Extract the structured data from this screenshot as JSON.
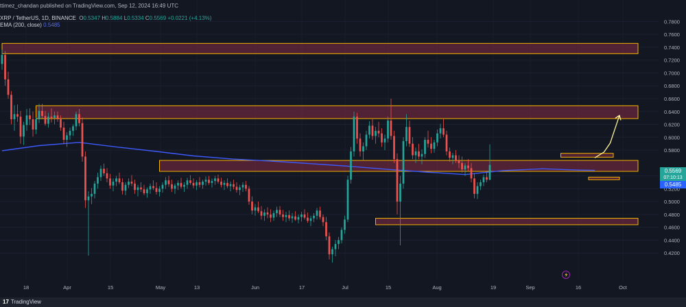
{
  "header": {
    "published": "ttimez_chandan published on TradingView.com, Sep 12, 2024 16:49 UTC",
    "symbol": "XRP / TetherUS, 1D, BINANCE",
    "o_label": "O",
    "o": "0.5347",
    "h_label": "H",
    "h": "0.5884",
    "l_label": "L",
    "l": "0.5334",
    "c_label": "C",
    "c": "0.5569",
    "change": "+0.0221 (+4.13%)",
    "ema_label": "EMA (200, close)",
    "ema_value": "0.5485"
  },
  "footer": {
    "brand": "TradingView",
    "logo": "17"
  },
  "colors": {
    "background": "#131722",
    "up": "#26a69a",
    "down": "#ef5350",
    "ema": "#3d5afe",
    "zone_border": "#f7b500",
    "zone_fill": "#7a2a40",
    "projection_arrow": "#fff59d",
    "price_tag": "#26a69a",
    "ema_tag": "#2962ff"
  },
  "icons": {
    "lightning": "lightning-icon"
  },
  "chart_data": {
    "type": "candlestick",
    "symbol": "XRP / TetherUS",
    "interval": "1D",
    "exchange": "BINANCE",
    "ylim": [
      0.4,
      0.79
    ],
    "y_ticks": [
      "0.7800",
      "0.7600",
      "0.7400",
      "0.7200",
      "0.7000",
      "0.6800",
      "0.6600",
      "0.6400",
      "0.6200",
      "0.6000",
      "0.5800",
      "0.5400",
      "0.5200",
      "0.5000",
      "0.4800",
      "0.4600",
      "0.4400",
      "0.4200"
    ],
    "x_labels": [
      "18",
      "Apr",
      "15",
      "May",
      "13",
      "Jun",
      "17",
      "Jul",
      "15",
      "Aug",
      "19",
      "Sep",
      "16",
      "Oct"
    ],
    "last_price": "0.5569",
    "countdown": "07:10:13",
    "ema_last": "0.5485",
    "zones": [
      {
        "low": 0.73,
        "high": 0.746,
        "x_start": 0,
        "x_end": 206
      },
      {
        "low": 0.629,
        "high": 0.649,
        "x_start": 11,
        "x_end": 206
      },
      {
        "low": 0.547,
        "high": 0.564,
        "x_start": 51,
        "x_end": 206
      },
      {
        "low": 0.464,
        "high": 0.474,
        "x_start": 121,
        "x_end": 206
      },
      {
        "low": 0.569,
        "high": 0.575,
        "x_start": 181,
        "x_end": 198
      },
      {
        "low": 0.534,
        "high": 0.538,
        "x_start": 190,
        "x_end": 200
      }
    ],
    "projection": [
      [
        192,
        0.568
      ],
      [
        195,
        0.577
      ],
      [
        197,
        0.591
      ],
      [
        200,
        0.634
      ]
    ],
    "ema_200": [
      [
        0,
        0.579
      ],
      [
        12,
        0.587
      ],
      [
        25,
        0.592
      ],
      [
        37,
        0.585
      ],
      [
        50,
        0.578
      ],
      [
        62,
        0.571
      ],
      [
        75,
        0.566
      ],
      [
        87,
        0.563
      ],
      [
        100,
        0.559
      ],
      [
        112,
        0.555
      ],
      [
        125,
        0.55
      ],
      [
        137,
        0.546
      ],
      [
        150,
        0.542
      ],
      [
        162,
        0.548
      ],
      [
        175,
        0.551
      ],
      [
        187,
        0.549
      ],
      [
        192,
        0.5485
      ]
    ],
    "candles": [
      [
        0.714,
        0.736,
        0.705,
        0.728
      ],
      [
        0.728,
        0.734,
        0.68,
        0.69
      ],
      [
        0.69,
        0.702,
        0.66,
        0.666
      ],
      [
        0.666,
        0.672,
        0.62,
        0.628
      ],
      [
        0.628,
        0.65,
        0.61,
        0.636
      ],
      [
        0.636,
        0.651,
        0.624,
        0.632
      ],
      [
        0.632,
        0.641,
        0.59,
        0.601
      ],
      [
        0.601,
        0.624,
        0.588,
        0.619
      ],
      [
        0.619,
        0.644,
        0.61,
        0.634
      ],
      [
        0.634,
        0.645,
        0.619,
        0.628
      ],
      [
        0.628,
        0.64,
        0.601,
        0.612
      ],
      [
        0.612,
        0.631,
        0.605,
        0.628
      ],
      [
        0.628,
        0.652,
        0.622,
        0.641
      ],
      [
        0.641,
        0.652,
        0.628,
        0.633
      ],
      [
        0.633,
        0.641,
        0.618,
        0.621
      ],
      [
        0.621,
        0.638,
        0.615,
        0.632
      ],
      [
        0.632,
        0.645,
        0.623,
        0.63
      ],
      [
        0.63,
        0.64,
        0.62,
        0.634
      ],
      [
        0.634,
        0.64,
        0.624,
        0.628
      ],
      [
        0.628,
        0.634,
        0.61,
        0.615
      ],
      [
        0.615,
        0.624,
        0.59,
        0.596
      ],
      [
        0.596,
        0.608,
        0.585,
        0.603
      ],
      [
        0.603,
        0.615,
        0.596,
        0.61
      ],
      [
        0.61,
        0.62,
        0.602,
        0.617
      ],
      [
        0.617,
        0.64,
        0.611,
        0.636
      ],
      [
        0.636,
        0.644,
        0.617,
        0.622
      ],
      [
        0.622,
        0.631,
        0.562,
        0.57
      ],
      [
        0.57,
        0.578,
        0.49,
        0.502
      ],
      [
        0.502,
        0.516,
        0.416,
        0.508
      ],
      [
        0.508,
        0.521,
        0.496,
        0.512
      ],
      [
        0.512,
        0.532,
        0.505,
        0.528
      ],
      [
        0.528,
        0.545,
        0.52,
        0.538
      ],
      [
        0.538,
        0.556,
        0.532,
        0.551
      ],
      [
        0.551,
        0.559,
        0.54,
        0.544
      ],
      [
        0.544,
        0.552,
        0.53,
        0.536
      ],
      [
        0.536,
        0.543,
        0.52,
        0.525
      ],
      [
        0.525,
        0.536,
        0.516,
        0.531
      ],
      [
        0.531,
        0.54,
        0.524,
        0.536
      ],
      [
        0.536,
        0.545,
        0.527,
        0.53
      ],
      [
        0.53,
        0.536,
        0.511,
        0.517
      ],
      [
        0.517,
        0.53,
        0.51,
        0.526
      ],
      [
        0.526,
        0.536,
        0.521,
        0.531
      ],
      [
        0.531,
        0.541,
        0.524,
        0.528
      ],
      [
        0.528,
        0.534,
        0.512,
        0.518
      ],
      [
        0.518,
        0.526,
        0.508,
        0.522
      ],
      [
        0.522,
        0.53,
        0.515,
        0.519
      ],
      [
        0.519,
        0.526,
        0.51,
        0.513
      ],
      [
        0.513,
        0.522,
        0.506,
        0.519
      ],
      [
        0.519,
        0.528,
        0.512,
        0.524
      ],
      [
        0.524,
        0.533,
        0.518,
        0.521
      ],
      [
        0.521,
        0.53,
        0.511,
        0.515
      ],
      [
        0.515,
        0.524,
        0.508,
        0.52
      ],
      [
        0.52,
        0.53,
        0.514,
        0.526
      ],
      [
        0.526,
        0.538,
        0.52,
        0.533
      ],
      [
        0.533,
        0.54,
        0.523,
        0.527
      ],
      [
        0.527,
        0.534,
        0.515,
        0.52
      ],
      [
        0.52,
        0.528,
        0.512,
        0.525
      ],
      [
        0.525,
        0.533,
        0.518,
        0.529
      ],
      [
        0.529,
        0.537,
        0.52,
        0.523
      ],
      [
        0.523,
        0.53,
        0.515,
        0.526
      ],
      [
        0.526,
        0.537,
        0.52,
        0.533
      ],
      [
        0.533,
        0.541,
        0.526,
        0.529
      ],
      [
        0.529,
        0.536,
        0.521,
        0.525
      ],
      [
        0.525,
        0.533,
        0.518,
        0.53
      ],
      [
        0.53,
        0.538,
        0.522,
        0.526
      ],
      [
        0.526,
        0.534,
        0.52,
        0.531
      ],
      [
        0.531,
        0.539,
        0.525,
        0.534
      ],
      [
        0.534,
        0.54,
        0.526,
        0.529
      ],
      [
        0.529,
        0.536,
        0.522,
        0.532
      ],
      [
        0.532,
        0.54,
        0.526,
        0.536
      ],
      [
        0.536,
        0.542,
        0.528,
        0.531
      ],
      [
        0.531,
        0.537,
        0.522,
        0.526
      ],
      [
        0.526,
        0.533,
        0.518,
        0.529
      ],
      [
        0.529,
        0.536,
        0.521,
        0.524
      ],
      [
        0.524,
        0.531,
        0.516,
        0.527
      ],
      [
        0.527,
        0.534,
        0.519,
        0.523
      ],
      [
        0.523,
        0.53,
        0.514,
        0.518
      ],
      [
        0.518,
        0.526,
        0.51,
        0.522
      ],
      [
        0.522,
        0.53,
        0.515,
        0.526
      ],
      [
        0.526,
        0.532,
        0.516,
        0.52
      ],
      [
        0.52,
        0.524,
        0.495,
        0.5
      ],
      [
        0.5,
        0.508,
        0.48,
        0.486
      ],
      [
        0.486,
        0.496,
        0.478,
        0.491
      ],
      [
        0.491,
        0.5,
        0.482,
        0.485
      ],
      [
        0.485,
        0.493,
        0.472,
        0.478
      ],
      [
        0.478,
        0.488,
        0.47,
        0.483
      ],
      [
        0.483,
        0.491,
        0.474,
        0.48
      ],
      [
        0.48,
        0.488,
        0.468,
        0.475
      ],
      [
        0.475,
        0.486,
        0.47,
        0.482
      ],
      [
        0.482,
        0.492,
        0.476,
        0.487
      ],
      [
        0.487,
        0.493,
        0.476,
        0.48
      ],
      [
        0.48,
        0.487,
        0.47,
        0.476
      ],
      [
        0.476,
        0.484,
        0.468,
        0.479
      ],
      [
        0.479,
        0.486,
        0.47,
        0.474
      ],
      [
        0.474,
        0.482,
        0.467,
        0.477
      ],
      [
        0.477,
        0.485,
        0.47,
        0.472
      ],
      [
        0.472,
        0.48,
        0.466,
        0.476
      ],
      [
        0.476,
        0.484,
        0.469,
        0.48
      ],
      [
        0.48,
        0.488,
        0.472,
        0.475
      ],
      [
        0.475,
        0.483,
        0.467,
        0.47
      ],
      [
        0.47,
        0.478,
        0.462,
        0.474
      ],
      [
        0.474,
        0.482,
        0.468,
        0.478
      ],
      [
        0.478,
        0.49,
        0.472,
        0.486
      ],
      [
        0.486,
        0.492,
        0.472,
        0.476
      ],
      [
        0.476,
        0.48,
        0.462,
        0.468
      ],
      [
        0.468,
        0.476,
        0.44,
        0.446
      ],
      [
        0.446,
        0.452,
        0.41,
        0.418
      ],
      [
        0.418,
        0.43,
        0.405,
        0.426
      ],
      [
        0.426,
        0.44,
        0.415,
        0.434
      ],
      [
        0.434,
        0.445,
        0.426,
        0.44
      ],
      [
        0.44,
        0.46,
        0.435,
        0.456
      ],
      [
        0.456,
        0.478,
        0.45,
        0.472
      ],
      [
        0.472,
        0.54,
        0.468,
        0.534
      ],
      [
        0.534,
        0.585,
        0.528,
        0.578
      ],
      [
        0.578,
        0.64,
        0.57,
        0.632
      ],
      [
        0.632,
        0.638,
        0.59,
        0.598
      ],
      [
        0.598,
        0.606,
        0.57,
        0.578
      ],
      [
        0.578,
        0.592,
        0.564,
        0.586
      ],
      [
        0.586,
        0.61,
        0.58,
        0.604
      ],
      [
        0.604,
        0.625,
        0.598,
        0.618
      ],
      [
        0.618,
        0.628,
        0.596,
        0.602
      ],
      [
        0.602,
        0.616,
        0.59,
        0.61
      ],
      [
        0.61,
        0.624,
        0.6,
        0.606
      ],
      [
        0.606,
        0.614,
        0.585,
        0.592
      ],
      [
        0.592,
        0.604,
        0.58,
        0.598
      ],
      [
        0.598,
        0.632,
        0.592,
        0.626
      ],
      [
        0.626,
        0.66,
        0.596,
        0.602
      ],
      [
        0.602,
        0.61,
        0.56,
        0.566
      ],
      [
        0.566,
        0.575,
        0.48,
        0.5
      ],
      [
        0.5,
        0.54,
        0.432,
        0.528
      ],
      [
        0.528,
        0.6,
        0.52,
        0.594
      ],
      [
        0.594,
        0.636,
        0.586,
        0.616
      ],
      [
        0.616,
        0.626,
        0.585,
        0.59
      ],
      [
        0.59,
        0.6,
        0.566,
        0.572
      ],
      [
        0.572,
        0.584,
        0.56,
        0.578
      ],
      [
        0.578,
        0.59,
        0.566,
        0.57
      ],
      [
        0.57,
        0.581,
        0.558,
        0.574
      ],
      [
        0.574,
        0.6,
        0.568,
        0.596
      ],
      [
        0.596,
        0.61,
        0.584,
        0.59
      ],
      [
        0.59,
        0.6,
        0.575,
        0.582
      ],
      [
        0.582,
        0.596,
        0.576,
        0.592
      ],
      [
        0.592,
        0.612,
        0.586,
        0.606
      ],
      [
        0.606,
        0.621,
        0.598,
        0.614
      ],
      [
        0.614,
        0.628,
        0.6,
        0.604
      ],
      [
        0.604,
        0.61,
        0.572,
        0.578
      ],
      [
        0.578,
        0.584,
        0.562,
        0.568
      ],
      [
        0.568,
        0.576,
        0.558,
        0.572
      ],
      [
        0.572,
        0.58,
        0.56,
        0.564
      ],
      [
        0.564,
        0.572,
        0.552,
        0.56
      ],
      [
        0.56,
        0.57,
        0.545,
        0.55
      ],
      [
        0.55,
        0.56,
        0.54,
        0.556
      ],
      [
        0.556,
        0.566,
        0.548,
        0.552
      ],
      [
        0.552,
        0.56,
        0.53,
        0.536
      ],
      [
        0.536,
        0.544,
        0.505,
        0.512
      ],
      [
        0.512,
        0.53,
        0.504,
        0.524
      ],
      [
        0.524,
        0.534,
        0.518,
        0.53
      ],
      [
        0.53,
        0.542,
        0.524,
        0.538
      ],
      [
        0.538,
        0.548,
        0.53,
        0.534
      ],
      [
        0.534,
        0.589,
        0.533,
        0.557
      ]
    ]
  }
}
